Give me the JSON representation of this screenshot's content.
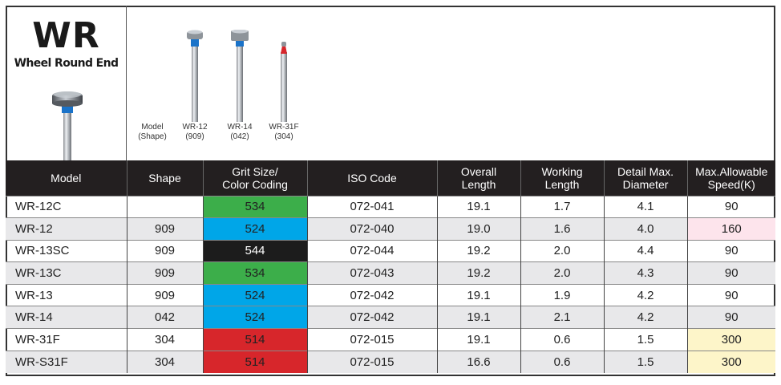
{
  "header": {
    "title": "WR",
    "subtitle": "Wheel Round End"
  },
  "shapes": {
    "label_line1": "Model",
    "label_line2": "(Shape)",
    "items": [
      {
        "model": "WR-12",
        "shape": "(909)"
      },
      {
        "model": "WR-14",
        "shape": "(042)"
      },
      {
        "model": "WR-31F",
        "shape": "(304)"
      }
    ]
  },
  "table": {
    "headers": [
      {
        "line1": "Model",
        "line2": ""
      },
      {
        "line1": "Shape",
        "line2": ""
      },
      {
        "line1": "Grit Size/",
        "line2": "Color Coding"
      },
      {
        "line1": "ISO Code",
        "line2": ""
      },
      {
        "line1": "Overall",
        "line2": "Length"
      },
      {
        "line1": "Working",
        "line2": "Length"
      },
      {
        "line1": "Detail Max.",
        "line2": "Diameter"
      },
      {
        "line1": "Max.Allowable",
        "line2": "Speed(K)"
      }
    ],
    "rows": [
      {
        "model": "WR-12C",
        "shape": "",
        "grit": "534",
        "grit_color": "green",
        "iso": "072-041",
        "overall": "19.1",
        "working": "1.7",
        "diameter": "4.1",
        "speed": "90",
        "speed_color": ""
      },
      {
        "model": "WR-12",
        "shape": "909",
        "grit": "524",
        "grit_color": "blue",
        "iso": "072-040",
        "overall": "19.0",
        "working": "1.6",
        "diameter": "4.0",
        "speed": "160",
        "speed_color": "pink"
      },
      {
        "model": "WR-13SC",
        "shape": "909",
        "grit": "544",
        "grit_color": "black",
        "iso": "072-044",
        "overall": "19.2",
        "working": "2.0",
        "diameter": "4.4",
        "speed": "90",
        "speed_color": ""
      },
      {
        "model": "WR-13C",
        "shape": "909",
        "grit": "534",
        "grit_color": "green",
        "iso": "072-043",
        "overall": "19.2",
        "working": "2.0",
        "diameter": "4.3",
        "speed": "90",
        "speed_color": ""
      },
      {
        "model": "WR-13",
        "shape": "909",
        "grit": "524",
        "grit_color": "blue",
        "iso": "072-042",
        "overall": "19.1",
        "working": "1.9",
        "diameter": "4.2",
        "speed": "90",
        "speed_color": ""
      },
      {
        "model": "WR-14",
        "shape": "042",
        "grit": "524",
        "grit_color": "blue",
        "iso": "072-042",
        "overall": "19.1",
        "working": "2.1",
        "diameter": "4.2",
        "speed": "90",
        "speed_color": ""
      },
      {
        "model": "WR-31F",
        "shape": "304",
        "grit": "514",
        "grit_color": "red",
        "iso": "072-015",
        "overall": "19.1",
        "working": "0.6",
        "diameter": "1.5",
        "speed": "300",
        "speed_color": "yellow"
      },
      {
        "model": "WR-S31F",
        "shape": "304",
        "grit": "514",
        "grit_color": "red",
        "iso": "072-015",
        "overall": "16.6",
        "working": "0.6",
        "diameter": "1.5",
        "speed": "300",
        "speed_color": "yellow"
      }
    ]
  }
}
